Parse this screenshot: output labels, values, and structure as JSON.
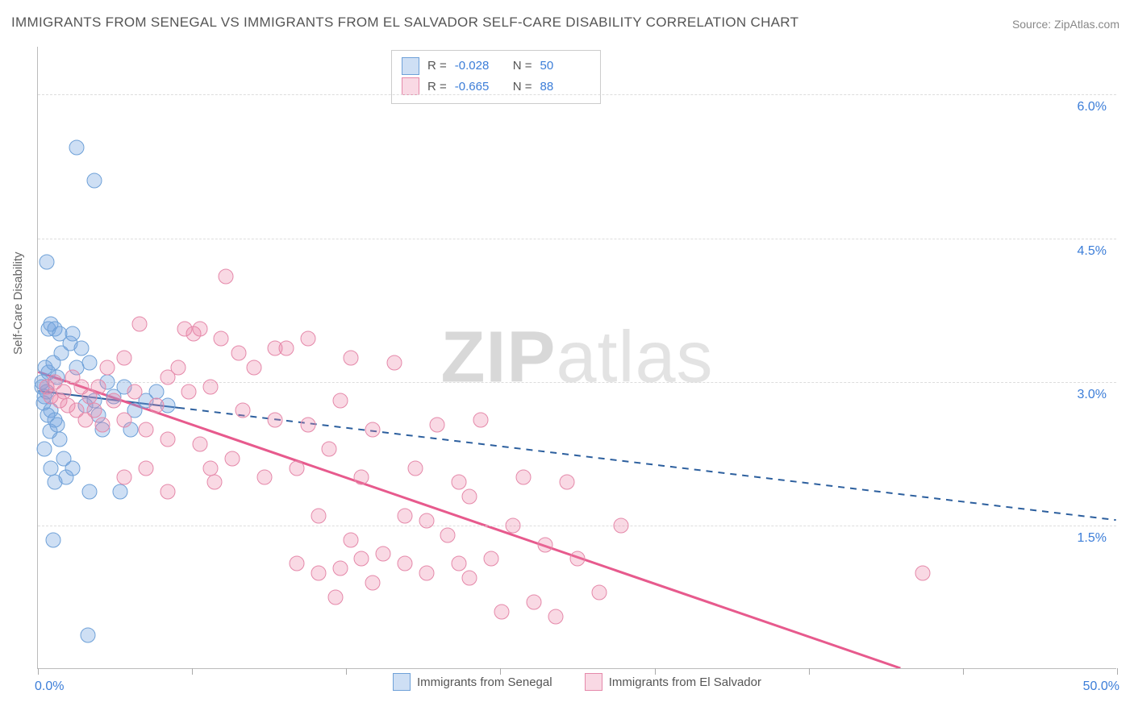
{
  "title": "IMMIGRANTS FROM SENEGAL VS IMMIGRANTS FROM EL SALVADOR SELF-CARE DISABILITY CORRELATION CHART",
  "source": "Source: ZipAtlas.com",
  "watermark_a": "ZIP",
  "watermark_b": "atlas",
  "ylabel": "Self-Care Disability",
  "chart": {
    "type": "scatter",
    "xlim": [
      0,
      50
    ],
    "ylim": [
      0,
      6.5
    ],
    "x_ticks": [
      0,
      7.14,
      14.29,
      21.43,
      28.57,
      35.71,
      42.86,
      50
    ],
    "y_gridlines": [
      1.5,
      3.0,
      4.5,
      6.0
    ],
    "y_tick_labels": [
      "1.5%",
      "3.0%",
      "4.5%",
      "6.0%"
    ],
    "x_min_label": "0.0%",
    "x_max_label": "50.0%",
    "background_color": "#ffffff",
    "grid_color": "#dddddd",
    "axis_color": "#bbbbbb",
    "tick_label_color": "#3b7dd8",
    "marker_size": 19,
    "series": [
      {
        "name": "Immigrants from Senegal",
        "color_fill": "rgba(114,163,224,0.35)",
        "color_stroke": "#6fa1d8",
        "R": "-0.028",
        "N": "50",
        "trend": {
          "x1": 0,
          "y1": 2.9,
          "x2": 50,
          "y2": 1.55,
          "solid_until_x": 6.5,
          "color": "#2c5f9e",
          "width": 2,
          "dash": "8,7"
        },
        "points": [
          [
            0.2,
            3.0
          ],
          [
            0.3,
            2.85
          ],
          [
            0.4,
            2.9
          ],
          [
            0.5,
            3.1
          ],
          [
            0.6,
            2.7
          ],
          [
            0.7,
            3.2
          ],
          [
            0.8,
            2.6
          ],
          [
            0.9,
            3.05
          ],
          [
            1.0,
            2.4
          ],
          [
            1.1,
            3.3
          ],
          [
            1.2,
            2.2
          ],
          [
            1.3,
            2.0
          ],
          [
            1.5,
            3.4
          ],
          [
            1.6,
            2.1
          ],
          [
            1.8,
            3.15
          ],
          [
            0.5,
            3.55
          ],
          [
            0.6,
            3.6
          ],
          [
            0.8,
            3.55
          ],
          [
            1.0,
            3.5
          ],
          [
            1.6,
            3.5
          ],
          [
            0.3,
            2.3
          ],
          [
            0.6,
            2.1
          ],
          [
            0.8,
            1.95
          ],
          [
            4.3,
            2.5
          ],
          [
            3.0,
            2.5
          ],
          [
            0.7,
            1.35
          ],
          [
            2.4,
            1.85
          ],
          [
            3.8,
            1.85
          ],
          [
            0.4,
            4.25
          ],
          [
            1.8,
            5.45
          ],
          [
            2.6,
            5.1
          ],
          [
            2.3,
            0.35
          ],
          [
            2.0,
            3.35
          ],
          [
            2.2,
            2.75
          ],
          [
            2.4,
            3.2
          ],
          [
            2.6,
            2.8
          ],
          [
            2.8,
            2.65
          ],
          [
            3.2,
            3.0
          ],
          [
            3.5,
            2.85
          ],
          [
            4.0,
            2.95
          ],
          [
            4.5,
            2.7
          ],
          [
            5.0,
            2.8
          ],
          [
            5.5,
            2.9
          ],
          [
            6.0,
            2.75
          ],
          [
            0.2,
            2.95
          ],
          [
            0.25,
            2.78
          ],
          [
            0.45,
            2.65
          ],
          [
            0.35,
            3.15
          ],
          [
            0.55,
            2.48
          ],
          [
            0.9,
            2.55
          ]
        ]
      },
      {
        "name": "Immigrants from El Salvador",
        "color_fill": "rgba(235,130,165,0.30)",
        "color_stroke": "#e589aa",
        "R": "-0.665",
        "N": "88",
        "trend": {
          "x1": 0,
          "y1": 3.1,
          "x2": 40,
          "y2": 0.0,
          "color": "#e75a8d",
          "width": 3
        },
        "points": [
          [
            0.4,
            2.95
          ],
          [
            0.6,
            2.85
          ],
          [
            0.8,
            3.0
          ],
          [
            1.0,
            2.8
          ],
          [
            1.2,
            2.9
          ],
          [
            1.4,
            2.75
          ],
          [
            1.6,
            3.05
          ],
          [
            1.8,
            2.7
          ],
          [
            2.0,
            2.95
          ],
          [
            2.2,
            2.6
          ],
          [
            2.4,
            2.85
          ],
          [
            2.6,
            2.7
          ],
          [
            2.8,
            2.95
          ],
          [
            3.0,
            2.55
          ],
          [
            3.5,
            2.8
          ],
          [
            4.0,
            2.6
          ],
          [
            4.5,
            2.9
          ],
          [
            5.0,
            2.5
          ],
          [
            5.5,
            2.75
          ],
          [
            6.0,
            2.4
          ],
          [
            6.5,
            3.15
          ],
          [
            7.0,
            2.9
          ],
          [
            7.2,
            3.5
          ],
          [
            7.5,
            2.35
          ],
          [
            8.0,
            2.95
          ],
          [
            8.5,
            3.45
          ],
          [
            8.7,
            4.1
          ],
          [
            9.0,
            2.2
          ],
          [
            9.5,
            2.7
          ],
          [
            10.0,
            3.15
          ],
          [
            10.5,
            2.0
          ],
          [
            11.0,
            2.6
          ],
          [
            11.5,
            3.35
          ],
          [
            12.0,
            2.1
          ],
          [
            12.5,
            2.55
          ],
          [
            13.0,
            1.6
          ],
          [
            13.5,
            2.3
          ],
          [
            14.0,
            2.8
          ],
          [
            14.5,
            1.35
          ],
          [
            15.0,
            2.0
          ],
          [
            15.5,
            2.5
          ],
          [
            16.0,
            1.2
          ],
          [
            16.5,
            3.2
          ],
          [
            17.0,
            1.6
          ],
          [
            17.5,
            2.1
          ],
          [
            18.0,
            1.0
          ],
          [
            15.0,
            1.15
          ],
          [
            14.0,
            1.05
          ],
          [
            18.5,
            2.55
          ],
          [
            19.0,
            1.4
          ],
          [
            19.5,
            1.1
          ],
          [
            20.0,
            1.8
          ],
          [
            20.5,
            2.6
          ],
          [
            21.0,
            1.15
          ],
          [
            21.5,
            0.6
          ],
          [
            22.0,
            1.5
          ],
          [
            22.5,
            2.0
          ],
          [
            23.0,
            0.7
          ],
          [
            23.5,
            1.3
          ],
          [
            24.0,
            0.55
          ],
          [
            25.0,
            1.15
          ],
          [
            26.0,
            0.8
          ],
          [
            27.0,
            1.5
          ],
          [
            5.0,
            2.1
          ],
          [
            6.0,
            1.85
          ],
          [
            7.5,
            3.55
          ],
          [
            8.2,
            1.95
          ],
          [
            4.7,
            3.6
          ],
          [
            3.2,
            3.15
          ],
          [
            4.0,
            3.25
          ],
          [
            6.8,
            3.55
          ],
          [
            9.3,
            3.3
          ],
          [
            11.0,
            3.35
          ],
          [
            12.0,
            1.1
          ],
          [
            13.0,
            1.0
          ],
          [
            13.8,
            0.75
          ],
          [
            15.5,
            0.9
          ],
          [
            17.0,
            1.1
          ],
          [
            18.0,
            1.55
          ],
          [
            19.5,
            1.95
          ],
          [
            12.5,
            3.45
          ],
          [
            14.5,
            3.25
          ],
          [
            41.0,
            1.0
          ],
          [
            24.5,
            1.95
          ],
          [
            20.0,
            0.95
          ],
          [
            8.0,
            2.1
          ],
          [
            6.0,
            3.05
          ],
          [
            4.0,
            2.0
          ]
        ]
      }
    ]
  },
  "legend_bottom": [
    "Immigrants from Senegal",
    "Immigrants from El Salvador"
  ]
}
